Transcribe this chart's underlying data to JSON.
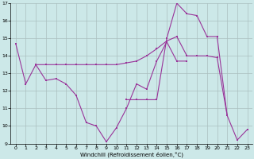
{
  "xlabel": "Windchill (Refroidissement éolien,°C)",
  "xlim": [
    -0.5,
    23.5
  ],
  "ylim": [
    9,
    17
  ],
  "yticks": [
    9,
    10,
    11,
    12,
    13,
    14,
    15,
    16,
    17
  ],
  "xticks": [
    0,
    1,
    2,
    3,
    4,
    5,
    6,
    7,
    8,
    9,
    10,
    11,
    12,
    13,
    14,
    15,
    16,
    17,
    18,
    19,
    20,
    21,
    22,
    23
  ],
  "bg_color": "#cce8e8",
  "grid_color": "#aabfbf",
  "line_color": "#993399",
  "line1_x": [
    0,
    1,
    2,
    3,
    4,
    5,
    6,
    7,
    8,
    9,
    10,
    11,
    12,
    13,
    14,
    15,
    16,
    17
  ],
  "line1_y": [
    14.7,
    12.4,
    13.5,
    12.6,
    12.7,
    12.4,
    11.75,
    10.2,
    10.0,
    9.1,
    9.9,
    11.0,
    12.4,
    12.1,
    13.7,
    14.8,
    13.7,
    13.7
  ],
  "line2_x": [
    2,
    3,
    4,
    5,
    6,
    7,
    8,
    9,
    10,
    11,
    12,
    13,
    14,
    15,
    16,
    17,
    18,
    19,
    20,
    21,
    22,
    23
  ],
  "line2_y": [
    13.5,
    13.5,
    13.5,
    13.5,
    13.5,
    13.5,
    13.5,
    13.5,
    13.5,
    13.6,
    13.7,
    14.0,
    14.4,
    14.85,
    15.1,
    14.0,
    14.0,
    14.0,
    13.9,
    10.6,
    9.2,
    9.8
  ],
  "line3_x": [
    11,
    12,
    13,
    14,
    15,
    16,
    17,
    18,
    19,
    20,
    21
  ],
  "line3_y": [
    11.5,
    11.5,
    11.5,
    11.5,
    15.0,
    17.0,
    16.4,
    16.3,
    15.1,
    15.1,
    10.6
  ]
}
